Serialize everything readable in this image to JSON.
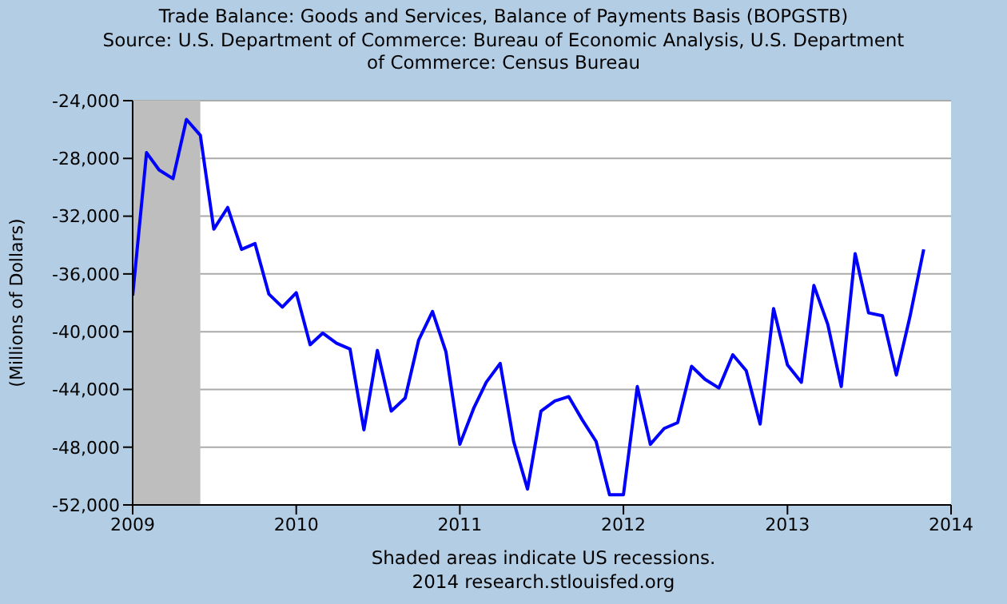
{
  "chart_data": {
    "type": "line",
    "title": "Trade Balance: Goods and Services, Balance of Payments Basis (BOPGSTB)",
    "subtitle": "Source: U.S. Department of Commerce: Bureau of Economic Analysis, U.S. Department of Commerce: Census Bureau",
    "ylabel": "(Millions of Dollars)",
    "annotations": [
      "Shaded areas indicate US recessions.",
      "2014 research.stlouisfed.org"
    ],
    "x": [
      "2009-01",
      "2009-02",
      "2009-03",
      "2009-04",
      "2009-05",
      "2009-06",
      "2009-07",
      "2009-08",
      "2009-09",
      "2009-10",
      "2009-11",
      "2009-12",
      "2010-01",
      "2010-02",
      "2010-03",
      "2010-04",
      "2010-05",
      "2010-06",
      "2010-07",
      "2010-08",
      "2010-09",
      "2010-10",
      "2010-11",
      "2010-12",
      "2011-01",
      "2011-02",
      "2011-03",
      "2011-04",
      "2011-05",
      "2011-06",
      "2011-07",
      "2011-08",
      "2011-09",
      "2011-10",
      "2011-11",
      "2011-12",
      "2012-01",
      "2012-02",
      "2012-03",
      "2012-04",
      "2012-05",
      "2012-06",
      "2012-07",
      "2012-08",
      "2012-09",
      "2012-10",
      "2012-11",
      "2012-12",
      "2013-01",
      "2013-02",
      "2013-03",
      "2013-04",
      "2013-05",
      "2013-06",
      "2013-07",
      "2013-08",
      "2013-09",
      "2013-10",
      "2013-11"
    ],
    "series": [
      {
        "color": "#0000ff",
        "values": [
          -37500,
          -27600,
          -28800,
          -29400,
          -25300,
          -26400,
          -32900,
          -31400,
          -34300,
          -33900,
          -37400,
          -38300,
          -37300,
          -40900,
          -40100,
          -40800,
          -41200,
          -46800,
          -41300,
          -45500,
          -44600,
          -40600,
          -38600,
          -41400,
          -47800,
          -45300,
          -43500,
          -42200,
          -47600,
          -50900,
          -45500,
          -44800,
          -44500,
          -46100,
          -47600,
          -51300,
          -51300,
          -43800,
          -47800,
          -46700,
          -46300,
          -42400,
          -43300,
          -43900,
          -41600,
          -42700,
          -46400,
          -38400,
          -42300,
          -43500,
          -36800,
          -39500,
          -43800,
          -34600,
          -38700,
          -38900,
          -43000,
          -39000,
          -34300
        ]
      }
    ],
    "xlim": [
      "2009-01",
      "2014-01"
    ],
    "xticks": [
      "2009",
      "2010",
      "2011",
      "2012",
      "2013",
      "2014"
    ],
    "ylim": [
      -52000,
      -24000
    ],
    "yticks": [
      {
        "value": -52000,
        "label": "-52,000"
      },
      {
        "value": -48000,
        "label": "-48,000"
      },
      {
        "value": -44000,
        "label": "-44,000"
      },
      {
        "value": -40000,
        "label": "-40,000"
      },
      {
        "value": -36000,
        "label": "-36,000"
      },
      {
        "value": -32000,
        "label": "-32,000"
      },
      {
        "value": -28000,
        "label": "-28,000"
      },
      {
        "value": -24000,
        "label": "-24,000"
      }
    ],
    "bands": [
      {
        "axis": "x",
        "from": "2009-01",
        "to": "2009-06",
        "color": "#bebebe"
      }
    ],
    "grid": "y",
    "marker": "none",
    "line_style": "solid"
  }
}
